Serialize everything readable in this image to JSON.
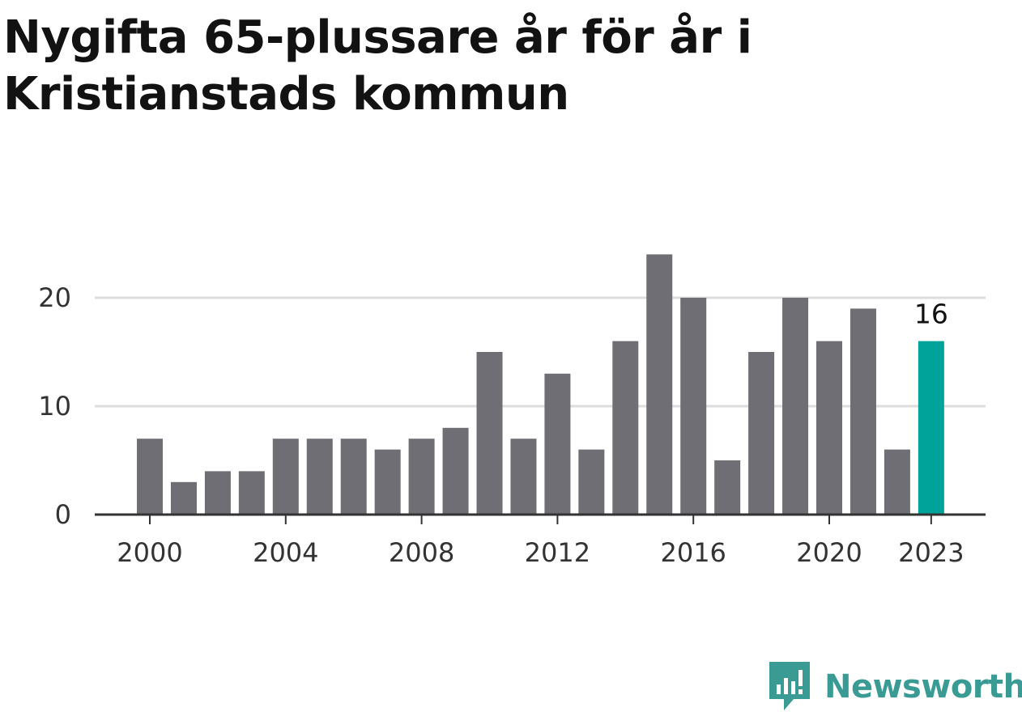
{
  "title": "Nygifta 65-plussare år för år i Kristianstads kommun",
  "brand": {
    "name": "Newsworthy",
    "icon": "newsworthy-logo-icon"
  },
  "colors": {
    "bar": "#6f6e74",
    "highlight": "#00a39a",
    "grid": "#dddddd",
    "axis": "#333333",
    "brand": "#3a9b94"
  },
  "chart_data": {
    "type": "bar",
    "title": "Nygifta 65-plussare år för år i Kristianstads kommun",
    "xlabel": "",
    "ylabel": "",
    "categories": [
      "2000",
      "2001",
      "2002",
      "2003",
      "2004",
      "2005",
      "2006",
      "2007",
      "2008",
      "2009",
      "2010",
      "2011",
      "2012",
      "2013",
      "2014",
      "2015",
      "2016",
      "2017",
      "2018",
      "2019",
      "2020",
      "2021",
      "2022",
      "2023"
    ],
    "values": [
      7,
      3,
      4,
      4,
      7,
      7,
      7,
      6,
      7,
      8,
      15,
      7,
      13,
      6,
      16,
      24,
      20,
      5,
      15,
      20,
      16,
      19,
      6,
      16
    ],
    "highlight_index": 23,
    "highlight_label": "16",
    "x_tick_labels": [
      "2000",
      "2004",
      "2008",
      "2012",
      "2016",
      "2020",
      "2023"
    ],
    "y_ticks": [
      0,
      10,
      20
    ],
    "y_tick_labels": [
      "0",
      "10",
      "20"
    ],
    "ylim": [
      0,
      25
    ],
    "grid": true
  }
}
